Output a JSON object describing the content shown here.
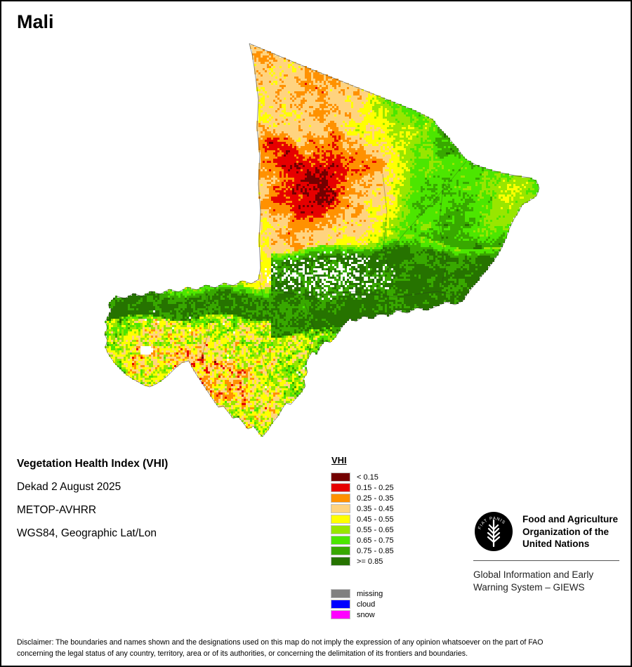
{
  "title": "Mali",
  "info": {
    "line1": "Vegetation Health Index (VHI)",
    "line2": "Dekad 2 August 2025",
    "line3": "METOP-AVHRR",
    "line4": "WGS84, Geographic Lat/Lon"
  },
  "legend": {
    "header": "VHI",
    "classes": [
      {
        "label": "< 0.15",
        "color": "#730000"
      },
      {
        "label": "0.15 - 0.25",
        "color": "#e60000"
      },
      {
        "label": "0.25 - 0.35",
        "color": "#ff9100"
      },
      {
        "label": "0.35 - 0.45",
        "color": "#ffd37f"
      },
      {
        "label": "0.45 - 0.55",
        "color": "#ffff00"
      },
      {
        "label": "0.55 - 0.65",
        "color": "#98e600"
      },
      {
        "label": "0.65 - 0.75",
        "color": "#4ce600"
      },
      {
        "label": "0.75 - 0.85",
        "color": "#38a800"
      },
      {
        "label": ">= 0.85",
        "color": "#267300"
      }
    ],
    "extra": [
      {
        "label": "missing",
        "color": "#808080"
      },
      {
        "label": "cloud",
        "color": "#0000ff"
      },
      {
        "label": "snow",
        "color": "#ff00ff"
      }
    ]
  },
  "footer": {
    "fao_name": [
      "Food and Agriculture",
      "Organization of the",
      "United Nations"
    ],
    "logo_motto": "FIAT PANIS",
    "giews": [
      "Global Information and Early",
      "Warning System – GIEWS"
    ]
  },
  "disclaimer": {
    "lines": [
      "Disclaimer: The boundaries and names shown and the designations used on this map do not imply the expression of any opinion whatsoever on the part of FAO",
      "concerning the legal status of any country, territory, area or of its authorities, or concerning the delimitation of its frontiers and boundaries."
    ]
  }
}
